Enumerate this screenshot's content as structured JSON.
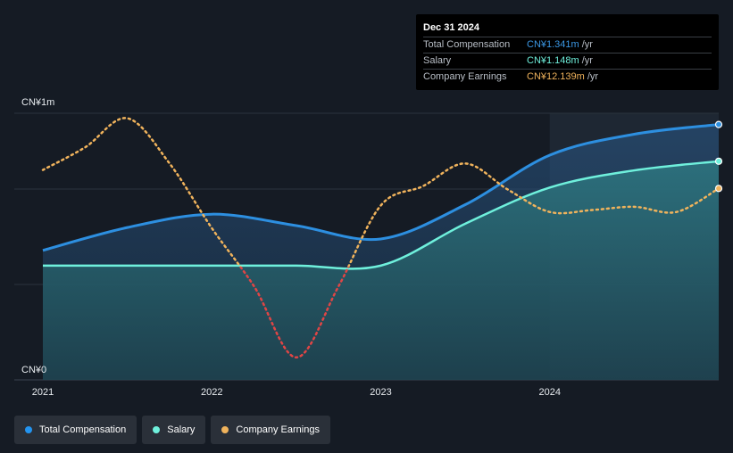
{
  "tooltip": {
    "date": "Dec 31 2024",
    "rows": [
      {
        "label": "Total Compensation",
        "value": "CN¥1.341m",
        "unit": "/yr",
        "color": "#3b97e3"
      },
      {
        "label": "Salary",
        "value": "CN¥1.148m",
        "unit": "/yr",
        "color": "#6ff0dc"
      },
      {
        "label": "Company Earnings",
        "value": "CN¥12.139m",
        "unit": "/yr",
        "color": "#f0b35c"
      }
    ]
  },
  "legend": [
    {
      "label": "Total Compensation",
      "color": "#2394f0"
    },
    {
      "label": "Salary",
      "color": "#6ff0dc"
    },
    {
      "label": "Company Earnings",
      "color": "#f0b35c"
    }
  ],
  "chart_data": {
    "type": "area",
    "y_tick_labels": [
      "CN¥1m",
      "CN¥0"
    ],
    "x_tick_labels": [
      "2021",
      "2022",
      "2023",
      "2024"
    ],
    "x_range": [
      2021.0,
      2025.0
    ],
    "y_range_comp": [
      0,
      1.4
    ],
    "forecast_shade_from": 2024.0,
    "gridlines": true,
    "series": [
      {
        "name": "Total Compensation",
        "color": "#2d8fe0",
        "x": [
          2021.0,
          2021.5,
          2022.0,
          2022.5,
          2023.0,
          2023.5,
          2024.0,
          2024.5,
          2025.0
        ],
        "values": [
          0.68,
          0.8,
          0.87,
          0.81,
          0.74,
          0.92,
          1.18,
          1.29,
          1.341
        ]
      },
      {
        "name": "Salary",
        "color": "#6ff0dc",
        "x": [
          2021.0,
          2021.5,
          2022.0,
          2022.5,
          2023.0,
          2023.5,
          2024.0,
          2024.5,
          2025.0
        ],
        "values": [
          0.6,
          0.6,
          0.6,
          0.6,
          0.6,
          0.82,
          1.01,
          1.1,
          1.148
        ]
      },
      {
        "name": "Company Earnings",
        "color": "#f0b35c",
        "negative_color": "#e04545",
        "x": [
          2021.0,
          2021.25,
          2021.5,
          2021.75,
          2022.0,
          2022.25,
          2022.5,
          2022.75,
          2023.0,
          2023.25,
          2023.5,
          2023.75,
          2024.0,
          2024.25,
          2024.5,
          2024.75,
          2025.0
        ],
        "values": [
          15.0,
          18.5,
          23.0,
          16.0,
          6.0,
          -3.0,
          -14.0,
          -3.0,
          9.5,
          12.5,
          16.0,
          12.0,
          8.5,
          8.8,
          9.3,
          8.5,
          12.139
        ]
      }
    ]
  }
}
